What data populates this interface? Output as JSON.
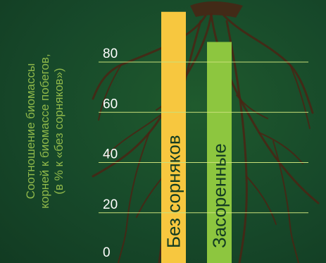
{
  "chart_data": {
    "type": "bar",
    "title": "",
    "ylabel_lines": [
      "Соотношение биомассы",
      "корней к биомассе побегов,",
      "(в % к «без сорняков»)"
    ],
    "xlabel": "",
    "ylim": [
      0,
      100
    ],
    "yticks": [
      0,
      20,
      40,
      60,
      80
    ],
    "grid": true,
    "categories": [
      "Без сорняков",
      "Засоренные"
    ],
    "values": [
      100,
      88
    ],
    "colors": {
      "bar_weed_free": "#f7c73f",
      "bar_weedy": "#8dc63f",
      "grid": "#c9e07a",
      "tick_text": "#ffffff",
      "ylabel_text": "#8fb84a",
      "roots": "#4a2414"
    }
  }
}
